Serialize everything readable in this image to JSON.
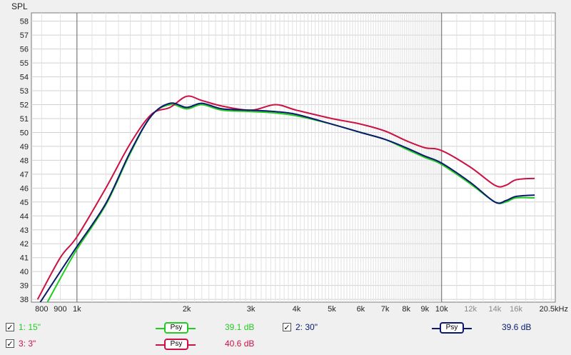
{
  "chart_data": {
    "type": "line",
    "title": "",
    "ylabel": "SPL",
    "xlabel": "",
    "x_scale": "log",
    "xlim": [
      750,
      20500
    ],
    "ylim": [
      37.8,
      58.6
    ],
    "y_ticks": [
      38,
      39,
      40,
      41,
      42,
      43,
      44,
      45,
      46,
      47,
      48,
      49,
      50,
      51,
      52,
      53,
      54,
      55,
      56,
      57,
      58
    ],
    "x_ticks": [
      {
        "value": 800,
        "label": "800"
      },
      {
        "value": 900,
        "label": "900"
      },
      {
        "value": 1000,
        "label": "1k"
      },
      {
        "value": 2000,
        "label": "2k"
      },
      {
        "value": 3000,
        "label": "3k"
      },
      {
        "value": 4000,
        "label": "4k"
      },
      {
        "value": 5000,
        "label": "5k"
      },
      {
        "value": 6000,
        "label": "6k"
      },
      {
        "value": 7000,
        "label": "7k"
      },
      {
        "value": 8000,
        "label": "8k"
      },
      {
        "value": 9000,
        "label": "9k"
      },
      {
        "value": 10000,
        "label": "10k"
      },
      {
        "value": 12000,
        "label": "12k"
      },
      {
        "value": 14000,
        "label": "14k"
      },
      {
        "value": 16000,
        "label": "16k"
      },
      {
        "value": 20500,
        "label": "20.5kHz"
      }
    ],
    "grid": true,
    "series": [
      {
        "name": "1: 15\"",
        "color": "#22cc22",
        "x": [
          780,
          900,
          1000,
          1200,
          1400,
          1600,
          1800,
          2000,
          2200,
          2500,
          3000,
          3500,
          4000,
          5000,
          6000,
          7000,
          8000,
          9000,
          10000,
          12000,
          14000,
          15000,
          16000,
          18000
        ],
        "y": [
          36.5,
          39.5,
          41.6,
          44.8,
          48.5,
          51.2,
          52.0,
          51.7,
          52.0,
          51.6,
          51.5,
          51.4,
          51.2,
          50.6,
          50.0,
          49.5,
          48.8,
          48.2,
          47.7,
          46.3,
          45.0,
          45.0,
          45.3,
          45.3
        ]
      },
      {
        "name": "2: 30\"",
        "color": "#0b1a6e",
        "x": [
          780,
          900,
          1000,
          1200,
          1400,
          1600,
          1800,
          2000,
          2200,
          2500,
          3000,
          3500,
          4000,
          5000,
          6000,
          7000,
          8000,
          9000,
          10000,
          12000,
          14000,
          15000,
          16000,
          18000
        ],
        "y": [
          37.5,
          40.0,
          41.8,
          44.9,
          48.6,
          51.2,
          52.1,
          51.8,
          52.1,
          51.7,
          51.6,
          51.5,
          51.3,
          50.6,
          50.0,
          49.5,
          48.9,
          48.3,
          47.8,
          46.4,
          45.0,
          45.1,
          45.4,
          45.5
        ]
      },
      {
        "name": "3: 3\"",
        "color": "#cc1144",
        "x": [
          780,
          900,
          1000,
          1200,
          1400,
          1600,
          1800,
          2000,
          2200,
          2500,
          3000,
          3500,
          4000,
          5000,
          6000,
          7000,
          8000,
          9000,
          10000,
          12000,
          14000,
          15000,
          16000,
          18000
        ],
        "y": [
          38.0,
          41.0,
          42.5,
          46.0,
          49.2,
          51.3,
          51.8,
          52.6,
          52.3,
          51.9,
          51.6,
          52.0,
          51.6,
          51.0,
          50.6,
          50.1,
          49.4,
          48.9,
          48.7,
          47.5,
          46.2,
          46.2,
          46.6,
          46.7
        ]
      }
    ]
  },
  "legend": [
    {
      "checked": "✓",
      "label": "1: 15\"",
      "psy": "Psy",
      "value": "39.1 dB",
      "color": "#22cc22"
    },
    {
      "checked": "✓",
      "label": "2: 30\"",
      "psy": "Psy",
      "value": "39.6 dB",
      "color": "#0b1a6e"
    },
    {
      "checked": "✓",
      "label": "3: 3\"",
      "psy": "Psy",
      "value": "40.6 dB",
      "color": "#cc1144"
    }
  ]
}
